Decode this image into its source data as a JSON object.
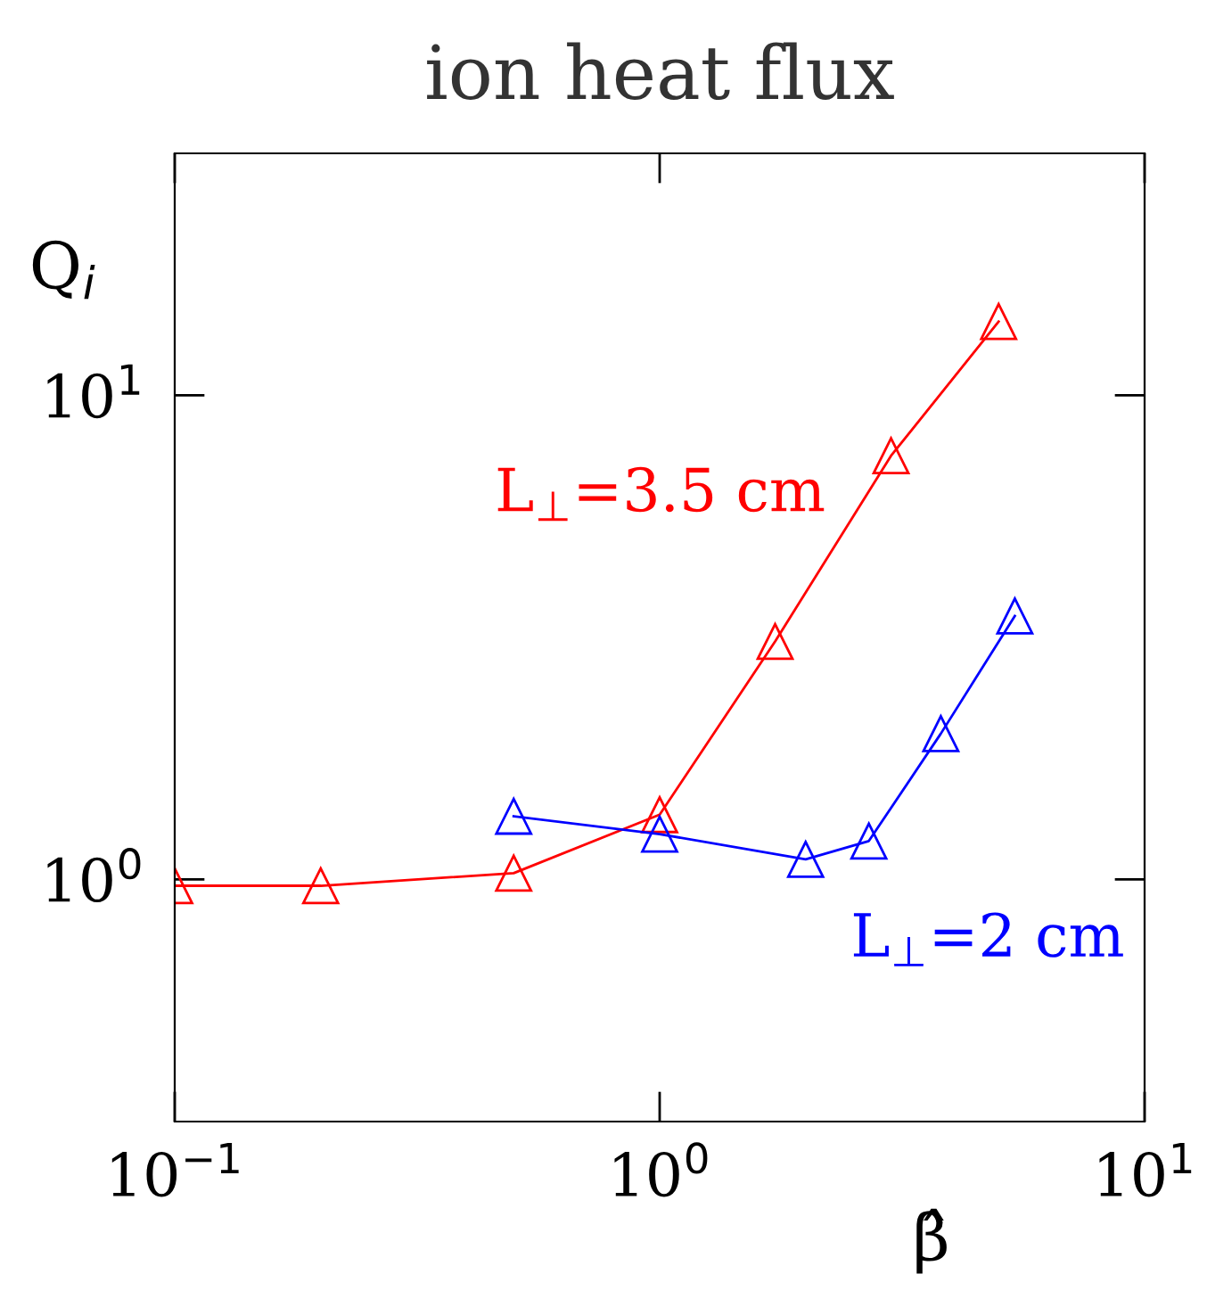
{
  "chart_data": {
    "type": "line",
    "title": "ion heat flux",
    "xlabel": "β̂",
    "ylabel": "Q$_{i}$",
    "log": "xy",
    "marker": "triangle",
    "line_style": "solid",
    "grid": false,
    "legend": false,
    "xlim": [
      0.1,
      10
    ],
    "xticks": [
      {
        "value": 0.1,
        "label": "10$^{−1}$"
      },
      {
        "value": 1,
        "label": "10$^{0}$"
      },
      {
        "value": 10,
        "label": "10$^{1}$"
      }
    ],
    "ylim": [
      0.316,
      31.6
    ],
    "yticks": [
      {
        "value": 1,
        "label": "10$^{0}$"
      },
      {
        "value": 10,
        "label": "10$^{1}$"
      }
    ],
    "series": [
      {
        "name": "L$_{⊥}$=3.5 cm",
        "color": "#ff0000",
        "x": [
          0.1,
          0.2,
          0.5,
          1.0,
          1.73,
          3.0,
          5.0
        ],
        "values": [
          0.97,
          0.97,
          1.03,
          1.36,
          3.1,
          7.5,
          14.2
        ]
      },
      {
        "name": "L$_{⊥}$=2 cm",
        "color": "#0000ff",
        "x": [
          0.5,
          1.0,
          2.0,
          2.7,
          3.8,
          5.4
        ],
        "values": [
          1.35,
          1.24,
          1.1,
          1.2,
          2.0,
          3.5
        ]
      }
    ]
  }
}
